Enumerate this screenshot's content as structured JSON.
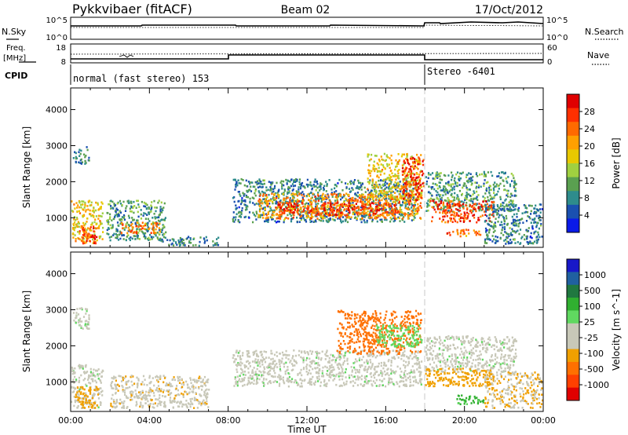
{
  "header": {
    "station": "Pykkvibaer (fitACF)",
    "beam": "Beam 02",
    "date": "17/Oct/2012"
  },
  "strip_labels": {
    "nsky": "N.Sky",
    "nsearch": "N.Search",
    "freq": "Freq.",
    "mhz": "[MHz]",
    "nave": "Nave",
    "cpid": "CPID",
    "noise_ticks": [
      "10^5",
      "10^0"
    ],
    "freq_ticks": [
      "18",
      "8"
    ],
    "nave_ticks": [
      "60",
      "0"
    ],
    "cpid_segments": [
      "normal (fast stereo) 153",
      "Stereo -6401"
    ]
  },
  "power_colorbar": {
    "label": "Power [dB]",
    "ticks": [
      "28",
      "24",
      "20",
      "16",
      "12",
      "8",
      "4"
    ],
    "colors": [
      "#e00000",
      "#ff3000",
      "#ff6a00",
      "#ffa000",
      "#e8c800",
      "#a0d040",
      "#5aa050",
      "#2e8c8c",
      "#1a50b0",
      "#0a1ae8"
    ]
  },
  "velocity_colorbar": {
    "label": "Velocity [m s^-1]",
    "ticks": [
      "1000",
      "500",
      "100",
      "25",
      "-25",
      "-100",
      "-500",
      "-1000"
    ],
    "colors": [
      "#1818c8",
      "#2060a0",
      "#207840",
      "#30b030",
      "#60d860",
      "#c8c8b8",
      "#c8c8b8",
      "#f0a000",
      "#ff7000",
      "#ff4000",
      "#e00000"
    ]
  },
  "axes": {
    "ylabel": "Slant Range [km]",
    "xlabel": "Time UT",
    "yticks": [
      "4000",
      "3000",
      "2000",
      "1000"
    ],
    "xticks": [
      "00:00",
      "04:00",
      "08:00",
      "12:00",
      "16:00",
      "20:00",
      "00:00"
    ]
  },
  "chart_data": [
    {
      "type": "heatmap",
      "title": "",
      "quantity": "Power [dB]",
      "xlabel": "",
      "ylabel": "Slant Range [km]",
      "x_range_hours_ut": [
        0,
        24
      ],
      "ylim": [
        180,
        4600
      ],
      "color_range": [
        0,
        32
      ],
      "blobs": [
        {
          "t0": 0.0,
          "t1": 1.6,
          "r0": 300,
          "r1": 1500,
          "level": 18
        },
        {
          "t0": 0.1,
          "t1": 0.9,
          "r0": 2500,
          "r1": 3000,
          "level": 8
        },
        {
          "t0": 0.3,
          "t1": 1.3,
          "r0": 300,
          "r1": 800,
          "level": 26
        },
        {
          "t0": 1.8,
          "t1": 4.8,
          "r0": 400,
          "r1": 1500,
          "level": 10
        },
        {
          "t0": 2.5,
          "t1": 4.5,
          "r0": 600,
          "r1": 900,
          "level": 24
        },
        {
          "t0": 4.5,
          "t1": 7.5,
          "r0": 250,
          "r1": 500,
          "level": 8
        },
        {
          "t0": 8.2,
          "t1": 17.5,
          "r0": 900,
          "r1": 2100,
          "level": 8
        },
        {
          "t0": 9.5,
          "t1": 17.8,
          "r0": 1000,
          "r1": 1700,
          "level": 22
        },
        {
          "t0": 10.5,
          "t1": 16.5,
          "r0": 1100,
          "r1": 1450,
          "level": 27
        },
        {
          "t0": 15.0,
          "t1": 17.8,
          "r0": 1500,
          "r1": 2800,
          "level": 18
        },
        {
          "t0": 16.8,
          "t1": 17.9,
          "r0": 1500,
          "r1": 2700,
          "level": 28
        },
        {
          "t0": 18.0,
          "t1": 22.6,
          "r0": 1200,
          "r1": 2300,
          "level": 10
        },
        {
          "t0": 18.2,
          "t1": 21.5,
          "r0": 900,
          "r1": 1500,
          "level": 26
        },
        {
          "t0": 19.0,
          "t1": 20.8,
          "r0": 500,
          "r1": 700,
          "level": 24
        },
        {
          "t0": 21.0,
          "t1": 24.0,
          "r0": 300,
          "r1": 1400,
          "level": 8
        }
      ]
    },
    {
      "type": "heatmap",
      "title": "",
      "quantity": "Velocity [m s^-1]",
      "xlabel": "Time UT",
      "ylabel": "Slant Range [km]",
      "x_range_hours_ut": [
        0,
        24
      ],
      "ylim": [
        180,
        4600
      ],
      "color_range": [
        -1000,
        1000
      ],
      "blobs": [
        {
          "t0": 0.0,
          "t1": 1.6,
          "r0": 300,
          "r1": 1500,
          "level": 0
        },
        {
          "t0": 0.1,
          "t1": 0.9,
          "r0": 2500,
          "r1": 3100,
          "level": 0
        },
        {
          "t0": 0.2,
          "t1": 1.4,
          "r0": 300,
          "r1": 900,
          "level": -150
        },
        {
          "t0": 2.0,
          "t1": 7.0,
          "r0": 300,
          "r1": 1200,
          "level": -80
        },
        {
          "t0": 8.2,
          "t1": 17.8,
          "r0": 900,
          "r1": 1900,
          "level": 0
        },
        {
          "t0": 13.5,
          "t1": 17.8,
          "r0": 1800,
          "r1": 3000,
          "level": -400
        },
        {
          "t0": 15.5,
          "t1": 17.8,
          "r0": 2000,
          "r1": 2600,
          "level": 60
        },
        {
          "t0": 18.0,
          "t1": 22.6,
          "r0": 1300,
          "r1": 2300,
          "level": 0
        },
        {
          "t0": 18.0,
          "t1": 21.5,
          "r0": 900,
          "r1": 1400,
          "level": -200
        },
        {
          "t0": 19.5,
          "t1": 21.0,
          "r0": 400,
          "r1": 650,
          "level": 120
        },
        {
          "t0": 21.0,
          "t1": 24.0,
          "r0": 300,
          "r1": 1300,
          "level": -100
        }
      ]
    }
  ]
}
